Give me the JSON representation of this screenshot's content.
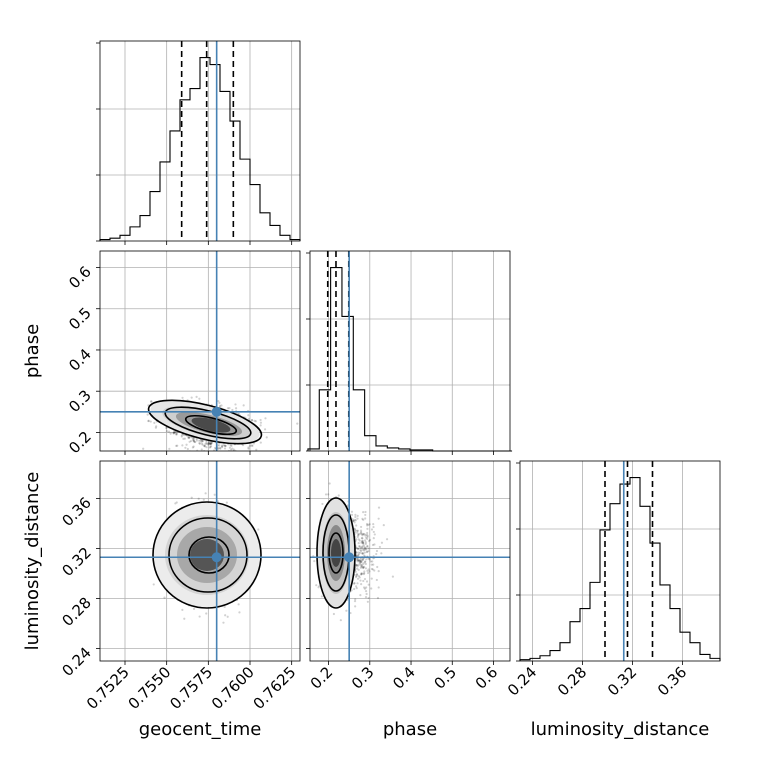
{
  "colors": {
    "truth": "#4682b4",
    "line": "#000000",
    "grid": "#b0b0b0"
  },
  "chart_data": {
    "type": "corner",
    "parameters": [
      "geocent_time",
      "phase",
      "luminosity_distance"
    ],
    "xlabels": [
      "geocent_time",
      "phase",
      "luminosity_distance"
    ],
    "ylabels": [
      "",
      "phase",
      "luminosity_distance"
    ],
    "truths": {
      "geocent_time": 0.758,
      "phase": 0.25,
      "luminosity_distance": 0.313
    },
    "quantiles": {
      "geocent_time": [
        0.7559,
        0.7574,
        0.759
      ],
      "phase": [
        0.198,
        0.218,
        0.249
      ],
      "luminosity_distance": [
        0.298,
        0.316,
        0.336
      ]
    },
    "ranges": {
      "geocent_time": [
        0.751,
        0.763
      ],
      "phase": [
        0.155,
        0.64
      ],
      "luminosity_distance": [
        0.23,
        0.39
      ]
    },
    "ticks": {
      "geocent_time": {
        "values": [
          0.7525,
          0.755,
          0.7575,
          0.76,
          0.7625
        ],
        "labels": [
          "0.7525",
          "0.7550",
          "0.7575",
          "0.7600",
          "0.7625"
        ]
      },
      "phase": {
        "values": [
          0.2,
          0.3,
          0.4,
          0.5,
          0.6
        ],
        "labels": [
          "0.2",
          "0.3",
          "0.4",
          "0.5",
          "0.6"
        ]
      },
      "luminosity_distance": {
        "values": [
          0.24,
          0.28,
          0.32,
          0.36
        ],
        "labels": [
          "0.24",
          "0.28",
          "0.32",
          "0.36"
        ]
      }
    },
    "histograms": {
      "geocent_time": {
        "edges": [
          0.751,
          0.7516,
          0.7522,
          0.7528,
          0.7534,
          0.754,
          0.7546,
          0.7552,
          0.7558,
          0.7564,
          0.757,
          0.7576,
          0.7582,
          0.7588,
          0.7594,
          0.76,
          0.7606,
          0.7612,
          0.7618,
          0.7624,
          0.763
        ],
        "counts": [
          1,
          2,
          4,
          10,
          18,
          35,
          56,
          78,
          100,
          108,
          130,
          125,
          106,
          85,
          58,
          40,
          20,
          11,
          4,
          1
        ]
      },
      "phase": {
        "edges": [
          0.15,
          0.1775,
          0.205,
          0.2325,
          0.26,
          0.2875,
          0.315,
          0.3425,
          0.37,
          0.3975,
          0.425,
          0.4525,
          0.48,
          0.5075,
          0.535,
          0.5625,
          0.59,
          0.6175,
          0.645
        ],
        "counts": [
          2,
          60,
          180,
          132,
          60,
          15,
          5,
          3,
          2,
          1,
          1,
          0,
          0,
          0,
          0,
          0,
          0,
          0
        ]
      },
      "luminosity_distance": {
        "edges": [
          0.23,
          0.238,
          0.246,
          0.254,
          0.262,
          0.27,
          0.278,
          0.286,
          0.294,
          0.302,
          0.31,
          0.318,
          0.326,
          0.334,
          0.342,
          0.35,
          0.358,
          0.366,
          0.374,
          0.382,
          0.39
        ],
        "counts": [
          1,
          2,
          4,
          8,
          14,
          30,
          40,
          60,
          100,
          120,
          135,
          140,
          118,
          90,
          58,
          40,
          22,
          14,
          5,
          2
        ]
      }
    }
  }
}
